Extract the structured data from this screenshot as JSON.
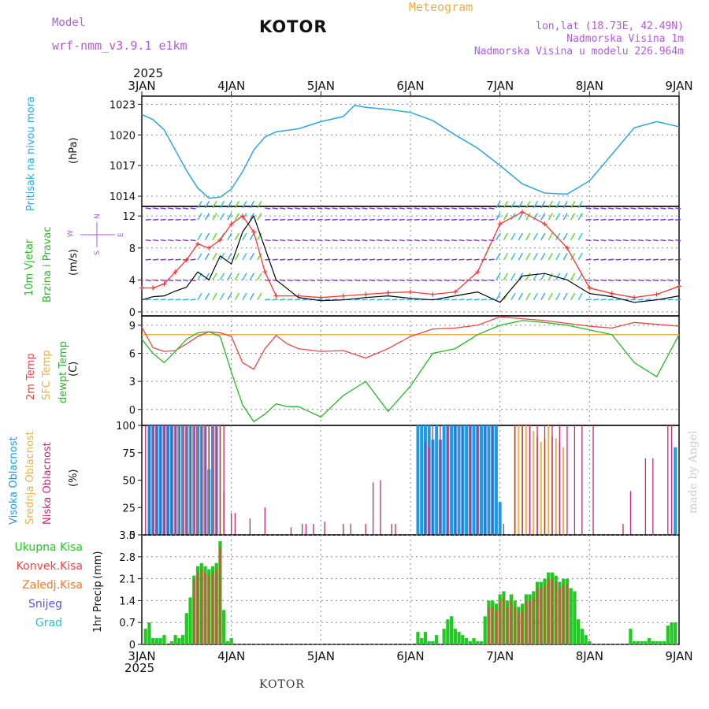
{
  "header": {
    "model_label": "Model",
    "model_name": "wrf-nmm_v3.9.1  e1km",
    "title": "KOTOR",
    "meteogram": "Meteogram",
    "coords": "lon,lat (18.73E, 42.49N)",
    "elevation": "Nadmorska Visina 1m",
    "model_elevation": "Nadmorska Visina u modelu 226.964m"
  },
  "footer": {
    "station": "KOTOR",
    "credit": "made by Angel"
  },
  "colors": {
    "pressure": "#2ba6e6",
    "wind_speed": "#000000",
    "wind_gust": "#ff3333",
    "temp_2m": "#ee4444",
    "temp_sfc": "#e8b04d",
    "dewpoint": "#22bb22",
    "cloud_high": "#1e9be6",
    "cloud_mid": "#e8b04d",
    "cloud_low": "#cc2277",
    "precip_total": "#22c922",
    "precip_conv": "#ee4444",
    "grid": "#888888"
  },
  "time_axis": {
    "year": "2025",
    "labels": [
      "3JAN",
      "4JAN",
      "5JAN",
      "6JAN",
      "7JAN",
      "8JAN",
      "9JAN"
    ]
  },
  "chart_data": [
    {
      "type": "line",
      "id": "pressure",
      "ylabel": "Pritisak na nivou mora",
      "unit": "(hPa)",
      "yticks": [
        "1014",
        "1017",
        "1020",
        "1023"
      ],
      "ylim": [
        1013.0,
        1023.8
      ],
      "xlim": [
        0,
        144
      ],
      "grid": true,
      "series": [
        {
          "x": [
            0,
            3,
            6,
            9,
            12,
            15,
            18,
            21,
            24,
            27,
            30,
            33,
            36,
            42,
            48,
            54,
            57,
            60,
            66,
            72,
            78,
            84,
            90,
            96,
            102,
            108,
            114,
            120,
            126,
            132,
            138,
            144
          ],
          "values": [
            1022,
            1021.5,
            1020.5,
            1018.5,
            1016.5,
            1014.8,
            1013.8,
            1013.9,
            1014.7,
            1016.4,
            1018.5,
            1019.8,
            1020.3,
            1020.6,
            1021.3,
            1021.8,
            1022.9,
            1022.7,
            1022.5,
            1022.2,
            1021.4,
            1020,
            1018.7,
            1017,
            1015.2,
            1014.3,
            1014.2,
            1015.5,
            1018.1,
            1020.7,
            1021.3,
            1020.8
          ]
        }
      ]
    },
    {
      "type": "line",
      "id": "wind",
      "ylabel": "10m Vjetar",
      "ylabel2": "Brzina i Pravac",
      "unit": "(m/s)",
      "compass": {
        "n": "N",
        "e": "E",
        "s": "S",
        "w": "W"
      },
      "yticks": [
        "0",
        "4",
        "8",
        "12"
      ],
      "ylim": [
        -0.5,
        13.2
      ],
      "xlim": [
        0,
        144
      ],
      "grid": true,
      "series": [
        {
          "x": [
            0,
            3,
            6,
            9,
            12,
            15,
            18,
            21,
            24,
            27,
            30,
            33,
            36,
            42,
            48,
            54,
            60,
            66,
            72,
            78,
            84,
            90,
            96,
            102,
            108,
            114,
            120,
            126,
            132,
            138,
            144
          ],
          "values": [
            1.5,
            1.9,
            2.0,
            2.6,
            3.1,
            5,
            4,
            7,
            6,
            10,
            12,
            8,
            4,
            1.8,
            1.4,
            1.5,
            1.8,
            2.0,
            1.7,
            1.5,
            2.0,
            2.5,
            1.2,
            4.5,
            4.8,
            4.0,
            2.3,
            1.9,
            1.2,
            1.5,
            2.0
          ]
        },
        {
          "x": [
            0,
            3,
            6,
            9,
            12,
            15,
            18,
            21,
            24,
            27,
            30,
            33,
            36,
            42,
            48,
            54,
            60,
            66,
            72,
            78,
            84,
            90,
            96,
            102,
            108,
            114,
            120,
            126,
            132,
            138,
            144
          ],
          "values": [
            3,
            3,
            3.5,
            5,
            6.5,
            8.5,
            8,
            9,
            11,
            12,
            10,
            5,
            2,
            2,
            1.8,
            2,
            2.2,
            2.4,
            2.5,
            2.2,
            2.5,
            5,
            11,
            12.5,
            11,
            8,
            3,
            2.3,
            1.8,
            2.2,
            3.2
          ]
        }
      ]
    },
    {
      "type": "line",
      "id": "temperature",
      "ylabel": "2m Temp",
      "ylabel2": "SFC Temp",
      "ylabel3": "dewpt Temp",
      "unit": "(C)",
      "yticks": [
        "0",
        "3",
        "6",
        "9"
      ],
      "ylim": [
        -1.7,
        10.0
      ],
      "xlim": [
        0,
        144
      ],
      "grid": true,
      "series": [
        {
          "x": [
            0,
            3,
            6,
            9,
            12,
            15,
            18,
            21,
            24,
            27,
            30,
            33,
            36,
            39,
            42,
            48,
            54,
            60,
            66,
            72,
            78,
            84,
            90,
            96,
            102,
            108,
            114,
            120,
            126,
            132,
            138,
            144
          ],
          "values": [
            8.8,
            6.6,
            6.2,
            6.3,
            7.0,
            7.8,
            8.3,
            8.2,
            7.8,
            5,
            4.3,
            6.5,
            7.9,
            7,
            6.5,
            6.2,
            6.3,
            5.5,
            6.5,
            7.8,
            8.6,
            8.7,
            9.0,
            9.9,
            9.7,
            9.5,
            9.2,
            8.9,
            8.7,
            9.3,
            9.1,
            8.9
          ]
        },
        {
          "x": [
            0,
            144
          ],
          "values": [
            8.0,
            8.0
          ]
        },
        {
          "x": [
            0,
            3,
            6,
            9,
            12,
            15,
            18,
            21,
            24,
            27,
            30,
            33,
            36,
            39,
            42,
            48,
            54,
            60,
            66,
            72,
            78,
            84,
            90,
            96,
            102,
            108,
            114,
            120,
            126,
            132,
            138,
            144
          ],
          "values": [
            7.5,
            6.0,
            5.0,
            6.2,
            7.5,
            8.2,
            8.3,
            7.8,
            4,
            0.5,
            -1.3,
            -0.5,
            0.6,
            0.3,
            0.3,
            -0.8,
            1.5,
            3.0,
            -0.2,
            2.5,
            6.0,
            6.5,
            8.0,
            9.0,
            9.5,
            9.3,
            9.0,
            8.5,
            8.0,
            5.0,
            3.5,
            8.0
          ]
        }
      ]
    },
    {
      "type": "bar",
      "id": "clouds",
      "ylabel": "Visoka Oblacnost",
      "ylabel2": "Srednja Oblacnost",
      "ylabel3": "Niska Oblacnost",
      "unit": "(%)",
      "yticks": [
        "0",
        "25",
        "50",
        "75",
        "100"
      ],
      "ylim": [
        0,
        100
      ],
      "xlim": [
        0,
        144
      ],
      "series": [
        {
          "x": [
            2,
            3,
            4,
            5,
            6,
            7,
            8,
            9,
            10,
            11,
            12,
            13,
            14,
            15,
            16,
            17,
            18,
            19,
            20,
            74,
            75,
            76,
            77,
            78,
            79,
            80,
            81,
            82,
            83,
            84,
            85,
            86,
            87,
            88,
            89,
            90,
            91,
            92,
            93,
            94,
            95,
            96,
            143
          ],
          "values": [
            100,
            100,
            100,
            100,
            100,
            100,
            100,
            100,
            100,
            100,
            100,
            100,
            100,
            100,
            100,
            100,
            60,
            100,
            100,
            100,
            100,
            100,
            100,
            87,
            100,
            87,
            100,
            100,
            100,
            100,
            100,
            100,
            100,
            100,
            100,
            100,
            100,
            100,
            100,
            100,
            100,
            30,
            80
          ]
        },
        {
          "x": [
            9,
            10,
            11,
            12,
            13,
            14,
            15,
            16,
            17,
            18,
            19,
            20,
            21,
            22,
            23,
            100,
            101,
            102,
            103,
            104,
            105,
            106,
            107,
            108,
            109,
            110,
            111,
            112,
            113
          ],
          "values": [
            100,
            100,
            100,
            100,
            100,
            100,
            100,
            100,
            100,
            100,
            100,
            100,
            100,
            40,
            0,
            100,
            100,
            100,
            100,
            100,
            95,
            90,
            85,
            88,
            100,
            90,
            88,
            85,
            80
          ]
        },
        {
          "x": [
            1,
            2,
            3,
            4,
            5,
            6,
            7,
            8,
            9,
            10,
            11,
            12,
            13,
            14,
            15,
            16,
            17,
            18,
            19,
            20,
            21,
            22,
            24,
            25,
            29,
            33,
            40,
            43,
            44,
            46,
            49,
            54,
            56,
            60,
            62,
            64,
            67,
            68,
            76,
            77,
            78,
            80,
            82,
            84,
            86,
            88,
            90,
            92,
            94,
            97,
            100,
            102,
            104,
            106,
            108,
            110,
            112,
            114,
            116,
            118,
            121,
            129,
            131,
            135,
            137,
            141,
            142
          ],
          "values": [
            100,
            100,
            100,
            100,
            100,
            100,
            100,
            100,
            100,
            100,
            100,
            100,
            100,
            100,
            100,
            100,
            100,
            100,
            100,
            100,
            100,
            100,
            20,
            20,
            15,
            25,
            7,
            10,
            10,
            10,
            12,
            10,
            10,
            10,
            48,
            50,
            10,
            10,
            85,
            80,
            100,
            100,
            100,
            100,
            100,
            100,
            100,
            100,
            100,
            10,
            100,
            100,
            100,
            100,
            100,
            100,
            100,
            100,
            100,
            100,
            100,
            10,
            40,
            70,
            70,
            100,
            100
          ]
        }
      ]
    },
    {
      "type": "bar",
      "id": "precip",
      "ylabel": "1hr Precip",
      "unit": "(mm)",
      "legend": [
        "Ukupna Kisa",
        "Konvek.Kisa",
        "Zaledj.Kisa",
        "Snijeg",
        "Grad"
      ],
      "yticks": [
        "0",
        "0.7",
        "1.4",
        "2.1",
        "2.8",
        "3.5"
      ],
      "ylim": [
        0,
        3.5
      ],
      "xlim": [
        0,
        144
      ],
      "grid": true,
      "series": [
        {
          "name": "Ukupna Kisa",
          "x": [
            1,
            2,
            3,
            4,
            5,
            6,
            7,
            8,
            9,
            10,
            11,
            12,
            13,
            14,
            15,
            16,
            17,
            18,
            19,
            20,
            21,
            22,
            23,
            24,
            74,
            75,
            76,
            77,
            78,
            79,
            80,
            81,
            82,
            83,
            84,
            85,
            86,
            87,
            88,
            89,
            90,
            91,
            92,
            93,
            94,
            95,
            96,
            97,
            98,
            99,
            100,
            101,
            102,
            103,
            104,
            105,
            106,
            107,
            108,
            109,
            110,
            111,
            112,
            113,
            114,
            115,
            116,
            117,
            118,
            119,
            120,
            131,
            132,
            133,
            134,
            135,
            136,
            137,
            138,
            139,
            140,
            141,
            142,
            143
          ],
          "values": [
            0.5,
            0.7,
            0.2,
            0.2,
            0.2,
            0.3,
            0,
            0.1,
            0.3,
            0.2,
            0.3,
            1.0,
            1.5,
            2.2,
            2.5,
            2.6,
            2.5,
            2.4,
            2.5,
            2.6,
            3.3,
            1.1,
            0.1,
            0.2,
            0.4,
            0.2,
            0.4,
            0.1,
            0.1,
            0.3,
            0,
            0.5,
            0.8,
            0.9,
            0.5,
            0.4,
            0.3,
            0.2,
            0.1,
            0.2,
            0.1,
            0.1,
            0.9,
            1.4,
            1.4,
            1.3,
            1.6,
            1.7,
            1.4,
            1.6,
            1.4,
            1.2,
            1.3,
            1.6,
            1.6,
            1.7,
            2.0,
            2.0,
            2.1,
            2.3,
            2.3,
            2.2,
            2.0,
            2.1,
            2.1,
            1.8,
            1.7,
            0.8,
            0.5,
            0.3,
            0.1,
            0.5,
            0.1,
            0.1,
            0.1,
            0.1,
            0.2,
            0.1,
            0.1,
            0.1,
            0.1,
            0.6,
            0.7,
            0.7
          ]
        },
        {
          "name": "Konvek.Kisa",
          "x": [
            14,
            15,
            16,
            17,
            18,
            19,
            20,
            21,
            93,
            94,
            95,
            96,
            97,
            98,
            99,
            100,
            101,
            102,
            103,
            104,
            105,
            106,
            107,
            108,
            109,
            110,
            111,
            112,
            113,
            114
          ],
          "values": [
            2.1,
            2.3,
            2.4,
            2.3,
            2.2,
            2.3,
            2.4,
            3.1,
            1.2,
            1.2,
            1.1,
            1.4,
            1.5,
            1.2,
            1.4,
            1.2,
            1.0,
            1.1,
            1.4,
            1.4,
            1.5,
            1.8,
            1.8,
            1.9,
            2.1,
            2.1,
            2.0,
            1.8,
            1.9,
            1.9
          ]
        }
      ]
    }
  ]
}
